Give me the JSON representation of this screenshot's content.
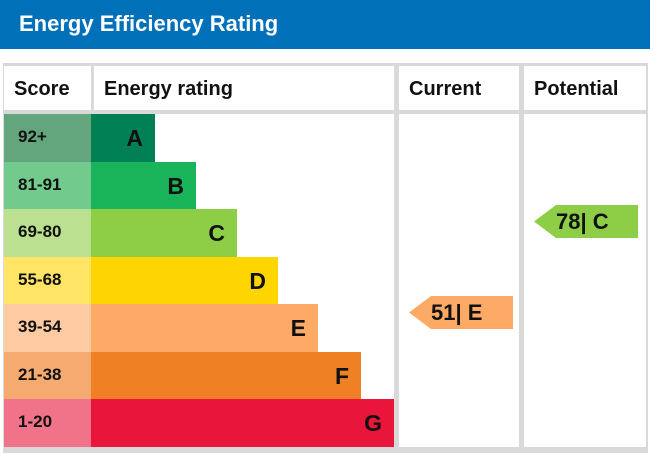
{
  "title": "Energy Efficiency Rating",
  "chart_data": {
    "type": "bar",
    "columns": [
      "Score",
      "Energy rating",
      "Current",
      "Potential"
    ],
    "bands": [
      {
        "score": "92+",
        "letter": "A",
        "color": "#008054",
        "light": "#63a67e"
      },
      {
        "score": "81-91",
        "letter": "B",
        "color": "#19b459",
        "light": "#72cb8c"
      },
      {
        "score": "69-80",
        "letter": "C",
        "color": "#8dce46",
        "light": "#bbe08f"
      },
      {
        "score": "55-68",
        "letter": "D",
        "color": "#ffd500",
        "light": "#ffe465"
      },
      {
        "score": "39-54",
        "letter": "E",
        "color": "#fcaa65",
        "light": "#fdcaa2"
      },
      {
        "score": "21-38",
        "letter": "F",
        "color": "#ef8023",
        "light": "#f5ab6f"
      },
      {
        "score": "1-20",
        "letter": "G",
        "color": "#e9153b",
        "light": "#f17389"
      }
    ],
    "current": {
      "value": 51,
      "letter": "E",
      "label": "51| E",
      "color": "#fcaa65"
    },
    "potential": {
      "value": 78,
      "letter": "C",
      "label": "78| C",
      "color": "#8dce46"
    }
  }
}
